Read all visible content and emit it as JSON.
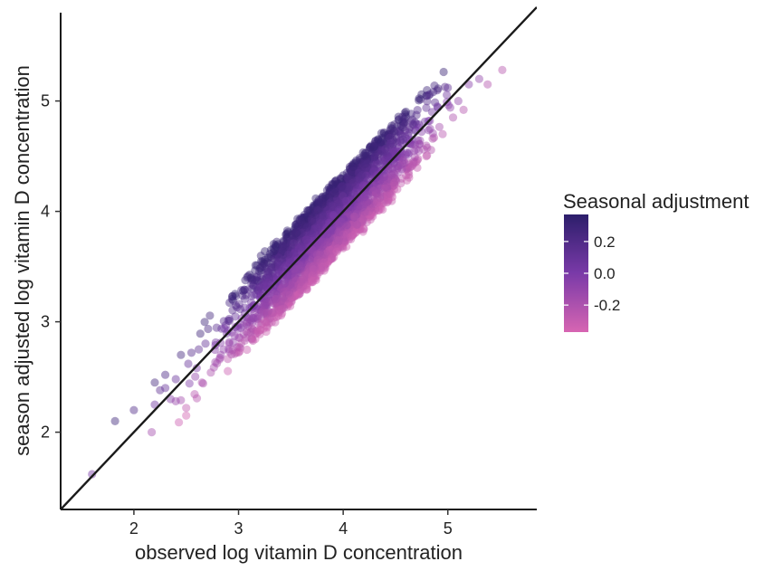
{
  "chart_data": {
    "type": "scatter",
    "title": "",
    "xlabel": "observed log vitamin D concentration",
    "ylabel": "season adjusted log vitamin D concentration",
    "xlim": [
      1.3,
      5.85
    ],
    "ylim": [
      1.3,
      5.8
    ],
    "x_ticks": [
      2,
      3,
      4,
      5
    ],
    "x_tick_labels": [
      "2",
      "3",
      "4",
      "5"
    ],
    "y_ticks": [
      2,
      3,
      4,
      5
    ],
    "y_tick_labels": [
      "2",
      "3",
      "4",
      "5"
    ],
    "grid": false,
    "reference_line": {
      "slope": 1,
      "intercept": 0,
      "color": "#1a1a1a"
    },
    "color_legend": {
      "title": "Seasonal adjustment",
      "range": [
        -0.37,
        0.37
      ],
      "ticks": [
        0.2,
        0.0,
        -0.2
      ],
      "tick_labels": [
        "0.2",
        "0.0",
        "-0.2"
      ],
      "low_color": "#d765b2",
      "mid_color": "#7a3aa8",
      "high_color": "#2c1e6b",
      "placement": "right"
    },
    "point_alpha": 0.45,
    "series": [
      {
        "points": [
          [
            1.6,
            1.62,
            0.02
          ],
          [
            1.82,
            2.1,
            0.28
          ],
          [
            2.0,
            2.2,
            0.2
          ],
          [
            2.17,
            2.0,
            -0.17
          ],
          [
            2.2,
            2.45,
            0.25
          ],
          [
            2.25,
            2.38,
            0.13
          ],
          [
            2.3,
            2.52,
            0.22
          ],
          [
            2.35,
            2.3,
            -0.05
          ],
          [
            2.4,
            2.28,
            -0.12
          ],
          [
            2.45,
            2.7,
            0.25
          ],
          [
            2.5,
            2.22,
            -0.28
          ],
          [
            2.52,
            2.62,
            0.1
          ],
          [
            2.55,
            2.72,
            0.17
          ],
          [
            2.6,
            2.58,
            -0.02
          ],
          [
            2.62,
            2.75,
            0.13
          ],
          [
            2.65,
            2.45,
            -0.2
          ],
          [
            2.5,
            2.15,
            -0.35
          ],
          [
            2.4,
            2.48,
            0.08
          ],
          [
            2.3,
            2.4,
            0.1
          ],
          [
            2.2,
            2.25,
            0.05
          ],
          [
            5.2,
            5.15,
            -0.05
          ],
          [
            5.3,
            5.2,
            -0.1
          ],
          [
            5.38,
            5.15,
            -0.23
          ],
          [
            5.52,
            5.28,
            -0.24
          ],
          [
            4.75,
            5.06,
            0.31
          ],
          [
            4.9,
            4.95,
            0.05
          ],
          [
            5.05,
            4.85,
            -0.2
          ],
          [
            5.1,
            5.0,
            -0.1
          ],
          [
            5.0,
            5.12,
            0.12
          ],
          [
            5.15,
            4.92,
            -0.23
          ],
          [
            4.95,
            4.7,
            -0.25
          ],
          [
            4.85,
            4.9,
            0.05
          ]
        ]
      }
    ]
  }
}
